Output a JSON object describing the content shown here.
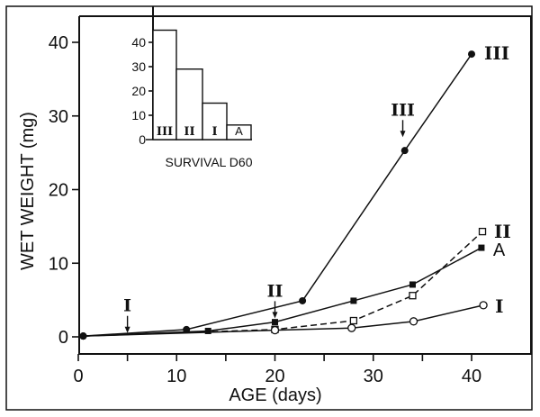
{
  "chart_data": {
    "type": "line",
    "title": "",
    "xlabel": "AGE (days)",
    "ylabel": "WET WEIGHT (mg)",
    "xlim": [
      0,
      46
    ],
    "ylim": [
      -1.5,
      44
    ],
    "x_ticks": [
      0,
      10,
      20,
      30,
      40
    ],
    "x_minor_ticks": [
      5,
      15,
      25,
      35
    ],
    "y_ticks": [
      0,
      10,
      20,
      30,
      40
    ],
    "grid": false,
    "series": [
      {
        "name": "III",
        "marker": "filled-circle",
        "dash": "solid",
        "x": [
          0.5,
          11,
          22.8,
          33.2,
          40.0
        ],
        "y": [
          0.1,
          1.0,
          4.9,
          25.3,
          38.4
        ]
      },
      {
        "name": "II",
        "marker": "open-square",
        "dash": "dashed",
        "x": [
          0.5,
          20,
          28,
          34,
          41.1
        ],
        "y": [
          0.1,
          1.0,
          2.2,
          5.6,
          14.3
        ]
      },
      {
        "name": "A",
        "marker": "filled-square",
        "dash": "solid",
        "x": [
          0.5,
          13.2,
          20,
          28,
          34,
          41
        ],
        "y": [
          0.1,
          0.8,
          2.0,
          4.9,
          7.1,
          12.1
        ]
      },
      {
        "name": "I",
        "marker": "open-circle",
        "dash": "solid",
        "x": [
          0.5,
          20,
          27.8,
          34.1,
          41.2
        ],
        "y": [
          0.1,
          0.9,
          1.2,
          2.1,
          4.3
        ]
      }
    ],
    "annotations": [
      {
        "label": "I",
        "x": 5,
        "y": 0.4,
        "type": "arrow"
      },
      {
        "label": "II",
        "x": 20,
        "y": 2.4,
        "type": "arrow"
      },
      {
        "label": "III",
        "x": 33,
        "y": 27,
        "type": "arrow"
      }
    ],
    "inset": {
      "type": "bar",
      "xlabel": "SURVIVAL D60",
      "categories": [
        "III",
        "II",
        "I",
        "A"
      ],
      "values": [
        45,
        29,
        15,
        6
      ],
      "ylim": [
        0,
        50
      ],
      "y_ticks": [
        0,
        10,
        20,
        30,
        40
      ]
    }
  }
}
